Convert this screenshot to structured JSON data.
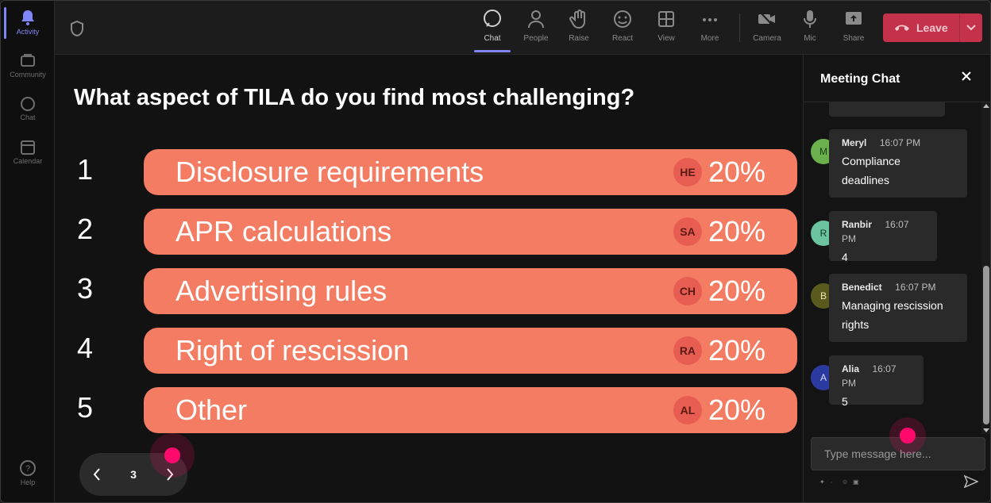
{
  "rail": {
    "items": [
      {
        "label": "Activity",
        "icon": "bell-icon",
        "active": true
      },
      {
        "label": "Community",
        "icon": "community-icon"
      },
      {
        "label": "Chat",
        "icon": "chat-icon"
      },
      {
        "label": "Calendar",
        "icon": "calendar-icon"
      }
    ],
    "help_label": "Help"
  },
  "toolbar": {
    "chat": "Chat",
    "people": "People",
    "raise": "Raise",
    "react": "React",
    "view": "View",
    "more": "More",
    "camera": "Camera",
    "mic": "Mic",
    "share": "Share",
    "leave": "Leave"
  },
  "poll": {
    "question": "What aspect of TILA do you find most challenging?",
    "options": [
      {
        "num": "1",
        "label": "Disclosure requirements",
        "badge": "HE",
        "pct": "20%"
      },
      {
        "num": "2",
        "label": "APR calculations",
        "badge": "SA",
        "pct": "20%"
      },
      {
        "num": "3",
        "label": "Advertising rules",
        "badge": "CH",
        "pct": "20%"
      },
      {
        "num": "4",
        "label": "Right of rescission",
        "badge": "RA",
        "pct": "20%"
      },
      {
        "num": "5",
        "label": "Other",
        "badge": "AL",
        "pct": "20%"
      }
    ],
    "page": "3"
  },
  "chat": {
    "title": "Meeting Chat",
    "messages": [
      {
        "initial": "M",
        "name": "Meryl",
        "time": "16:07 PM",
        "lines": [
          "Compliance",
          "deadlines"
        ],
        "color": "#6ab04c"
      },
      {
        "initial": "R",
        "name": "Ranbir",
        "time": "16:07 PM",
        "lines": [
          "4"
        ],
        "color": "#6cc3a0"
      },
      {
        "initial": "B",
        "name": "Benedict",
        "time": "16:07 PM",
        "lines": [
          "Managing rescission",
          "rights"
        ],
        "color": "#5a5a1e"
      },
      {
        "initial": "A",
        "name": "Alia",
        "time": "16:07 PM",
        "lines": [
          "5"
        ],
        "color": "#2b3aa0"
      }
    ],
    "placeholder": "Type message here..."
  },
  "colors": {
    "accent": "#7f85f5",
    "option_bar": "#f47c63",
    "leave": "#c4314b",
    "cursor": "#ff0a6c"
  }
}
